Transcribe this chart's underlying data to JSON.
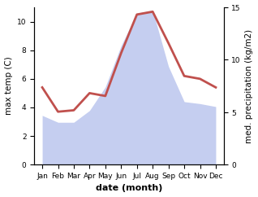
{
  "months": [
    "Jan",
    "Feb",
    "Mar",
    "Apr",
    "May",
    "Jun",
    "Jul",
    "Aug",
    "Sep",
    "Oct",
    "Nov",
    "Dec"
  ],
  "month_positions": [
    0,
    1,
    2,
    3,
    4,
    5,
    6,
    7,
    8,
    9,
    10,
    11
  ],
  "temperature": [
    5.4,
    3.7,
    3.8,
    5.0,
    4.8,
    7.8,
    10.5,
    10.7,
    8.5,
    6.2,
    6.0,
    5.4
  ],
  "precipitation_mm": [
    50,
    43,
    43,
    55,
    79,
    121,
    154,
    157,
    100,
    64,
    62,
    59
  ],
  "temp_color": "#c0504d",
  "precip_fill_color": "#c5cef0",
  "temp_ylim": [
    0,
    11
  ],
  "temp_yticks": [
    0,
    2,
    4,
    6,
    8,
    10
  ],
  "precip_ylim": [
    0,
    160
  ],
  "precip_yticks": [
    0,
    50,
    100,
    150
  ],
  "precip_ylabel_ticks": [
    0,
    5,
    10,
    15
  ],
  "xlabel": "date (month)",
  "ylabel_left": "max temp (C)",
  "ylabel_right": "med. precipitation (kg/m2)",
  "line_width": 2.0,
  "background_color": "#ffffff",
  "font_size_ticks": 6.5,
  "font_size_label": 7.5,
  "font_size_xlabel": 8
}
